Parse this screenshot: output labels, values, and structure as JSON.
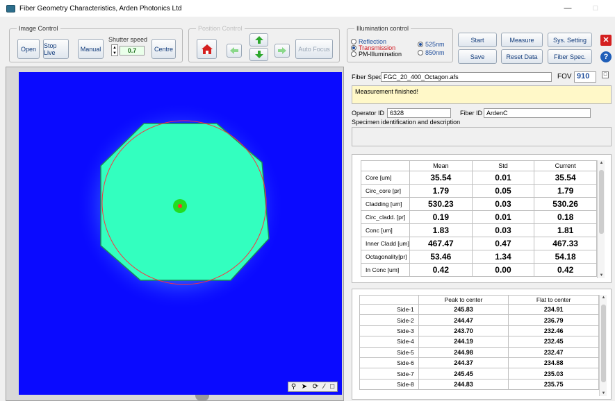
{
  "window": {
    "title": "Fiber Geometry Characteristics, Arden Photonics Ltd"
  },
  "image_control": {
    "title": "Image Control",
    "shutter_label": "Shutter speed",
    "open": "Open",
    "stop_live": "Stop Live",
    "manual": "Manual",
    "shutter_value": "0.7",
    "centre": "Centre"
  },
  "position_control": {
    "title": "Position Control",
    "auto_focus": "Auto Focus"
  },
  "illumination": {
    "title": "Illumination control",
    "reflection": "Reflection",
    "transmission": "Transmission",
    "pm": "PM-Illumination",
    "nm525": "525nm",
    "nm850": "850nm"
  },
  "toolbar": {
    "start": "Start",
    "measure": "Measure",
    "sys_setting": "Sys. Setting",
    "save": "Save",
    "reset_data": "Reset Data",
    "fiber_spec": "Fiber Spec."
  },
  "spec": {
    "label": "Fiber Spec",
    "value": "FGC_20_400_Octagon.afs",
    "fov_label": "FOV",
    "fov_value": "910",
    "message": "Measurement finished!",
    "operator_label": "Operator ID",
    "operator_value": "6328",
    "fiber_label": "Fiber ID",
    "fiber_value": "ArdenC",
    "specimen_label": "Specimen identification and description"
  },
  "results": {
    "headers": [
      "Mean",
      "Std",
      "Current"
    ],
    "rows": [
      {
        "label": "Core       [um]",
        "mean": "35.54",
        "std": "0.01",
        "current": "35.54"
      },
      {
        "label": "Circ_core  [pr]",
        "mean": "1.79",
        "std": "0.05",
        "current": "1.79"
      },
      {
        "label": "Cladding  [um]",
        "mean": "530.23",
        "std": "0.03",
        "current": "530.26"
      },
      {
        "label": "Circ_cladd. [pr]",
        "mean": "0.19",
        "std": "0.01",
        "current": "0.18"
      },
      {
        "label": "Conc       [um]",
        "mean": "1.83",
        "std": "0.03",
        "current": "1.81"
      },
      {
        "label": "Inner Cladd [um]",
        "mean": "467.47",
        "std": "0.47",
        "current": "467.33"
      },
      {
        "label": "Octagonality[pr]",
        "mean": "53.46",
        "std": "1.34",
        "current": "54.18"
      },
      {
        "label": "In Conc    [um]",
        "mean": "0.42",
        "std": "0.00",
        "current": "0.42"
      }
    ]
  },
  "sides": {
    "headers": [
      "Peak to center",
      "Flat to center"
    ],
    "rows": [
      {
        "label": "Side-1",
        "peak": "245.83",
        "flat": "234.91"
      },
      {
        "label": "Side-2",
        "peak": "244.47",
        "flat": "236.79"
      },
      {
        "label": "Side-3",
        "peak": "243.70",
        "flat": "232.46"
      },
      {
        "label": "Side-4",
        "peak": "244.19",
        "flat": "232.45"
      },
      {
        "label": "Side-5",
        "peak": "244.98",
        "flat": "232.47"
      },
      {
        "label": "Side-6",
        "peak": "244.37",
        "flat": "234.88"
      },
      {
        "label": "Side-7",
        "peak": "245.45",
        "flat": "235.03"
      },
      {
        "label": "Side-8",
        "peak": "244.83",
        "flat": "235.75"
      }
    ]
  },
  "colors": {
    "image_bg": "#0a0aff",
    "fiber": "#33ffbf",
    "core": "#22dd22",
    "accent": "#1f4e9c"
  }
}
